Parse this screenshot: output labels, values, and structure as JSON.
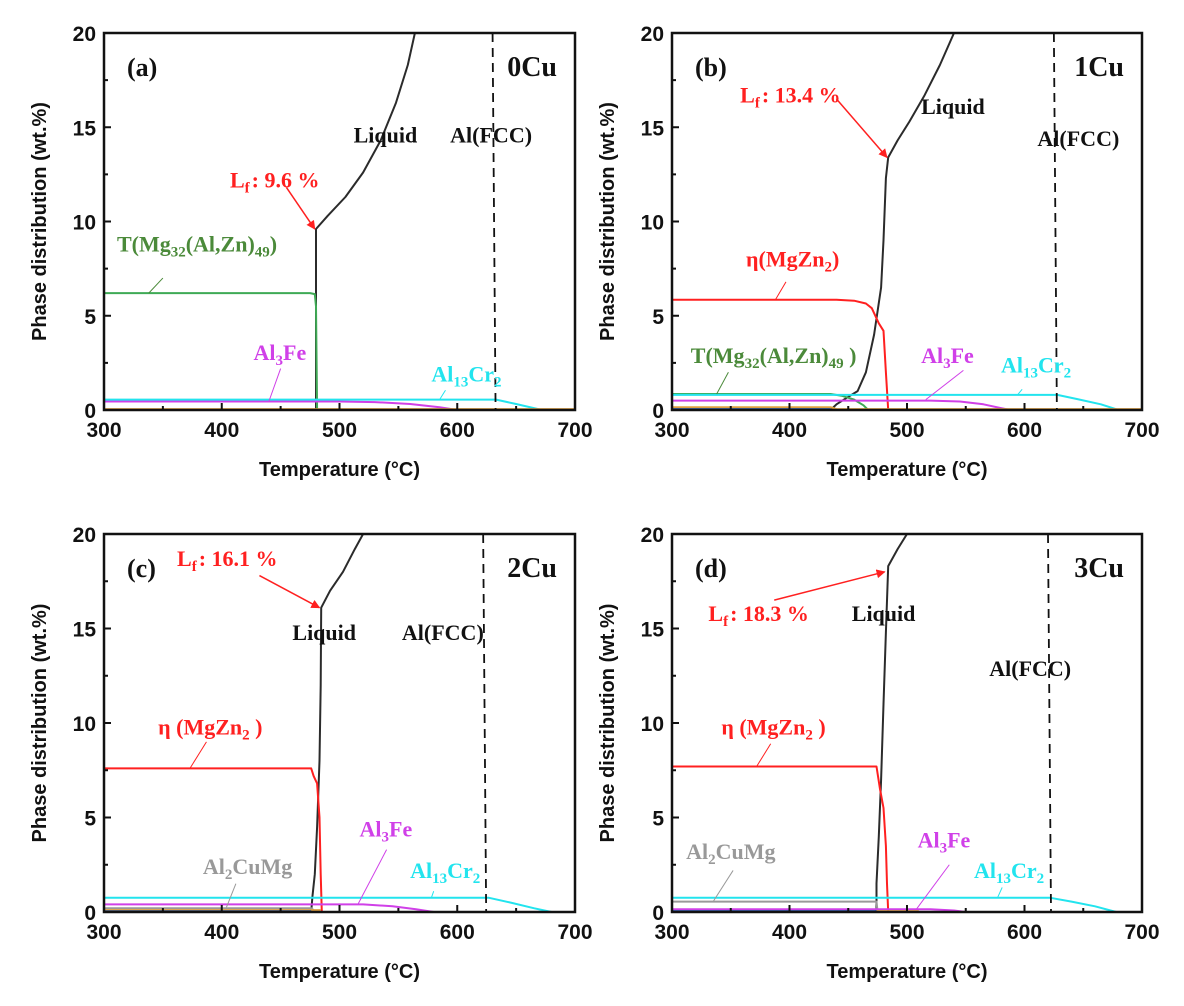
{
  "figure": {
    "colors": {
      "liquid": "#2b2b2b",
      "fcc": "#111111",
      "T_phase": "#3faa55",
      "T_label": "#4b8a3a",
      "eta": "#ff2020",
      "al3fe": "#d040e8",
      "al13cr2": "#22e4ee",
      "al2cumg": "#999999",
      "annotation_red": "#ff2020",
      "minor_orange": "#e0a040",
      "minor_blue": "#2050a0"
    }
  },
  "chart_data": [
    {
      "id": "a",
      "type": "line",
      "panel_label": "(a)",
      "composition_label": "0Cu",
      "xlabel": "Temperature (°C)",
      "ylabel": "Phase distribution (wt.%)",
      "xlim": [
        300,
        700
      ],
      "ylim": [
        0,
        20
      ],
      "xticks": [
        300,
        400,
        500,
        600,
        700
      ],
      "yticks": [
        0,
        5,
        10,
        15,
        20
      ],
      "fcc_dashed_line_T": 630,
      "series": [
        {
          "name": "Liquid",
          "color_key": "liquid",
          "points": [
            [
              480,
              0
            ],
            [
              480,
              9.6
            ],
            [
              490,
              10.3
            ],
            [
              505,
              11.3
            ],
            [
              520,
              12.6
            ],
            [
              535,
              14.3
            ],
            [
              548,
              16.3
            ],
            [
              558,
              18.3
            ],
            [
              564,
              20
            ]
          ]
        },
        {
          "name": "T(Mg32(Al,Zn)49)",
          "color_key": "T_phase",
          "points": [
            [
              300,
              6.2
            ],
            [
              475,
              6.2
            ],
            [
              479,
              6.15
            ],
            [
              480,
              5.5
            ],
            [
              481,
              0
            ]
          ]
        },
        {
          "name": "Al3Fe",
          "color_key": "al3fe",
          "points": [
            [
              300,
              0.45
            ],
            [
              500,
              0.45
            ],
            [
              530,
              0.42
            ],
            [
              560,
              0.32
            ],
            [
              585,
              0.15
            ],
            [
              600,
              0
            ]
          ]
        },
        {
          "name": "Al13Cr2",
          "color_key": "al13cr2",
          "points": [
            [
              300,
              0.55
            ],
            [
              633,
              0.55
            ],
            [
              650,
              0.32
            ],
            [
              672,
              0
            ],
            [
              700,
              0
            ]
          ]
        },
        {
          "name": "minor",
          "color_key": "minor_orange",
          "points": [
            [
              300,
              0.05
            ],
            [
              700,
              0.05
            ]
          ]
        }
      ],
      "annotations": [
        {
          "text_main": "L",
          "text_sub": "f",
          "text_tail": ": 9.6 %",
          "color_key": "annotation_red",
          "arrow_to": [
            479,
            9.6
          ],
          "arrow_from": [
            455,
            11.8
          ]
        },
        {
          "text": "Liquid",
          "color_key": "fcc"
        },
        {
          "text": "Al(FCC)",
          "color_key": "fcc"
        },
        {
          "text_parts": [
            "T(Mg",
            "32",
            "(Al,Zn)",
            "49",
            ")"
          ],
          "color_key": "T_label"
        },
        {
          "text_parts": [
            "Al",
            "3",
            "Fe"
          ],
          "color_key": "al3fe"
        },
        {
          "text_parts": [
            "Al",
            "13",
            "Cr",
            "2"
          ],
          "color_key": "al13cr2"
        }
      ],
      "Lf_value": "9.6 %"
    },
    {
      "id": "b",
      "type": "line",
      "panel_label": "(b)",
      "composition_label": "1Cu",
      "xlabel": "Temperature (°C)",
      "ylabel": "Phase distribution (wt.%)",
      "xlim": [
        300,
        700
      ],
      "ylim": [
        0,
        20
      ],
      "xticks": [
        300,
        400,
        500,
        600,
        700
      ],
      "yticks": [
        0,
        5,
        10,
        15,
        20
      ],
      "fcc_dashed_line_T": 625,
      "series": [
        {
          "name": "Liquid",
          "color_key": "liquid",
          "points": [
            [
              435,
              0
            ],
            [
              440,
              0.3
            ],
            [
              450,
              0.7
            ],
            [
              458,
              1.0
            ],
            [
              465,
              2.0
            ],
            [
              472,
              4.0
            ],
            [
              478,
              6.5
            ],
            [
              480,
              9.0
            ],
            [
              482,
              12.3
            ],
            [
              484,
              13.4
            ],
            [
              492,
              14.3
            ],
            [
              502,
              15.3
            ],
            [
              515,
              16.7
            ],
            [
              528,
              18.3
            ],
            [
              540,
              20
            ]
          ]
        },
        {
          "name": "η(MgZn2)",
          "color_key": "eta",
          "points": [
            [
              300,
              5.85
            ],
            [
              440,
              5.85
            ],
            [
              455,
              5.8
            ],
            [
              465,
              5.65
            ],
            [
              470,
              5.4
            ],
            [
              476,
              4.6
            ],
            [
              480,
              4.2
            ],
            [
              482,
              2.0
            ],
            [
              484,
              0
            ]
          ]
        },
        {
          "name": "T(Mg32(Al,Zn)49)",
          "color_key": "T_phase",
          "points": [
            [
              300,
              0.85
            ],
            [
              435,
              0.85
            ],
            [
              445,
              0.75
            ],
            [
              455,
              0.55
            ],
            [
              463,
              0.25
            ],
            [
              467,
              0
            ]
          ]
        },
        {
          "name": "Al3Fe",
          "color_key": "al3fe",
          "points": [
            [
              300,
              0.5
            ],
            [
              520,
              0.5
            ],
            [
              545,
              0.45
            ],
            [
              565,
              0.3
            ],
            [
              580,
              0.1
            ],
            [
              588,
              0
            ]
          ]
        },
        {
          "name": "Al13Cr2",
          "color_key": "al13cr2",
          "points": [
            [
              300,
              0.8
            ],
            [
              628,
              0.8
            ],
            [
              645,
              0.58
            ],
            [
              665,
              0.3
            ],
            [
              680,
              0
            ],
            [
              700,
              0
            ]
          ]
        },
        {
          "name": "minor-orange",
          "color_key": "minor_orange",
          "points": [
            [
              300,
              0.15
            ],
            [
              435,
              0.15
            ],
            [
              440,
              0.05
            ],
            [
              700,
              0.05
            ]
          ]
        },
        {
          "name": "minor-blue",
          "color_key": "minor_blue",
          "points": [
            [
              300,
              0.05
            ],
            [
              435,
              0.05
            ]
          ]
        }
      ],
      "annotations": [
        {
          "text_main": "L",
          "text_sub": "f",
          "text_tail": ": 13.4 %",
          "color_key": "annotation_red",
          "arrow_to": [
            483,
            13.4
          ],
          "arrow_from": [
            440,
            16.5
          ]
        },
        {
          "text": "Liquid",
          "color_key": "fcc"
        },
        {
          "text": "Al(FCC)",
          "color_key": "fcc"
        },
        {
          "text_parts": [
            "η(MgZn",
            "2",
            ")"
          ],
          "color_key": "eta"
        },
        {
          "text_parts": [
            "T(Mg",
            "32",
            "(Al,Zn)",
            "49",
            " )"
          ],
          "color_key": "T_label"
        },
        {
          "text_parts": [
            "Al",
            "3",
            "Fe"
          ],
          "color_key": "al3fe"
        },
        {
          "text_parts": [
            "Al",
            "13",
            "Cr",
            "2"
          ],
          "color_key": "al13cr2"
        }
      ],
      "Lf_value": "13.4 %"
    },
    {
      "id": "c",
      "type": "line",
      "panel_label": "(c)",
      "composition_label": "2Cu",
      "xlabel": "Temperature (°C)",
      "ylabel": "Phase distribution (wt.%)",
      "xlim": [
        300,
        700
      ],
      "ylim": [
        0,
        20
      ],
      "xticks": [
        300,
        400,
        500,
        600,
        700
      ],
      "yticks": [
        0,
        5,
        10,
        15,
        20
      ],
      "fcc_dashed_line_T": 622,
      "series": [
        {
          "name": "Liquid",
          "color_key": "liquid",
          "points": [
            [
              476,
              0
            ],
            [
              477,
              0.8
            ],
            [
              479,
              2.0
            ],
            [
              481,
              4.5
            ],
            [
              483,
              8.0
            ],
            [
              484,
              12.0
            ],
            [
              484.5,
              16.1
            ],
            [
              492,
              17.0
            ],
            [
              503,
              18.0
            ],
            [
              513,
              19.2
            ],
            [
              520,
              20
            ]
          ]
        },
        {
          "name": "η (MgZn2)",
          "color_key": "eta",
          "points": [
            [
              300,
              7.6
            ],
            [
              476,
              7.6
            ],
            [
              478,
              7.2
            ],
            [
              481,
              6.8
            ],
            [
              483,
              5.0
            ],
            [
              484,
              2.0
            ],
            [
              485,
              0
            ]
          ]
        },
        {
          "name": "Al2CuMg",
          "color_key": "al2cumg",
          "points": [
            [
              300,
              0.2
            ],
            [
              476,
              0.2
            ],
            [
              480,
              0
            ]
          ]
        },
        {
          "name": "Al3Fe",
          "color_key": "al3fe",
          "points": [
            [
              300,
              0.4
            ],
            [
              520,
              0.4
            ],
            [
              545,
              0.3
            ],
            [
              565,
              0.15
            ],
            [
              580,
              0
            ]
          ]
        },
        {
          "name": "Al13Cr2",
          "color_key": "al13cr2",
          "points": [
            [
              300,
              0.75
            ],
            [
              627,
              0.75
            ],
            [
              645,
              0.5
            ],
            [
              665,
              0.2
            ],
            [
              680,
              0
            ],
            [
              700,
              0
            ]
          ]
        },
        {
          "name": "minor-orange",
          "color_key": "minor_orange",
          "points": [
            [
              300,
              0.1
            ],
            [
              484,
              0.1
            ]
          ]
        },
        {
          "name": "minor-blue",
          "color_key": "minor_blue",
          "points": [
            [
              300,
              0.04
            ],
            [
              476,
              0.04
            ]
          ]
        }
      ],
      "annotations": [
        {
          "text_main": "L",
          "text_sub": "f",
          "text_tail": ": 16.1 %",
          "color_key": "annotation_red",
          "arrow_to": [
            483,
            16.1
          ],
          "arrow_from": [
            432,
            17.8
          ]
        },
        {
          "text": "Liquid",
          "color_key": "fcc"
        },
        {
          "text": "Al(FCC)",
          "color_key": "fcc"
        },
        {
          "text_parts": [
            "η (MgZn",
            "2",
            " )"
          ],
          "color_key": "eta"
        },
        {
          "text_parts": [
            "Al",
            "2",
            "CuMg"
          ],
          "color_key": "al2cumg"
        },
        {
          "text_parts": [
            "Al",
            "3",
            "Fe"
          ],
          "color_key": "al3fe"
        },
        {
          "text_parts": [
            "Al",
            "13",
            "Cr",
            "2"
          ],
          "color_key": "al13cr2"
        }
      ],
      "Lf_value": "16.1 %"
    },
    {
      "id": "d",
      "type": "line",
      "panel_label": "(d)",
      "composition_label": "3Cu",
      "xlabel": "Temperature (°C)",
      "ylabel": "Phase distribution (wt.%)",
      "xlim": [
        300,
        700
      ],
      "ylim": [
        0,
        20
      ],
      "xticks": [
        300,
        400,
        500,
        600,
        700
      ],
      "yticks": [
        0,
        5,
        10,
        15,
        20
      ],
      "fcc_dashed_line_T": 620,
      "series": [
        {
          "name": "Liquid",
          "color_key": "liquid",
          "points": [
            [
              474,
              0
            ],
            [
              474,
              1.5
            ],
            [
              476,
              4.0
            ],
            [
              478,
              7.0
            ],
            [
              480,
              11.0
            ],
            [
              482,
              14.8
            ],
            [
              484,
              18.3
            ],
            [
              492,
              19.2
            ],
            [
              500,
              20
            ]
          ]
        },
        {
          "name": "η (MgZn2)",
          "color_key": "eta",
          "points": [
            [
              300,
              7.7
            ],
            [
              474,
              7.7
            ],
            [
              477,
              6.5
            ],
            [
              480,
              5.5
            ],
            [
              482,
              3.5
            ],
            [
              483,
              1.5
            ],
            [
              484,
              0
            ]
          ]
        },
        {
          "name": "Al2CuMg",
          "color_key": "al2cumg",
          "points": [
            [
              300,
              0.55
            ],
            [
              474,
              0.55
            ],
            [
              475,
              0
            ]
          ]
        },
        {
          "name": "Al3Fe",
          "color_key": "al3fe",
          "points": [
            [
              300,
              0.15
            ],
            [
              520,
              0.15
            ],
            [
              540,
              0.08
            ],
            [
              550,
              0
            ]
          ]
        },
        {
          "name": "Al13Cr2",
          "color_key": "al13cr2",
          "points": [
            [
              300,
              0.75
            ],
            [
              622,
              0.75
            ],
            [
              640,
              0.55
            ],
            [
              660,
              0.3
            ],
            [
              678,
              0
            ],
            [
              700,
              0
            ]
          ]
        },
        {
          "name": "minor-orange",
          "color_key": "minor_orange",
          "points": [
            [
              474,
              0.05
            ],
            [
              510,
              0.05
            ]
          ]
        },
        {
          "name": "minor-blue",
          "color_key": "minor_blue",
          "points": [
            [
              300,
              0.05
            ],
            [
              474,
              0.05
            ]
          ]
        }
      ],
      "annotations": [
        {
          "text_main": "L",
          "text_sub": "f",
          "text_tail": ": 18.3 %",
          "color_key": "annotation_red",
          "arrow_to": [
            481,
            18.0
          ],
          "arrow_from": [
            387,
            16.5
          ]
        },
        {
          "text": "Liquid",
          "color_key": "fcc"
        },
        {
          "text": "Al(FCC)",
          "color_key": "fcc"
        },
        {
          "text_parts": [
            "η (MgZn",
            "2",
            " )"
          ],
          "color_key": "eta"
        },
        {
          "text_parts": [
            "Al",
            "2",
            "CuMg"
          ],
          "color_key": "al2cumg"
        },
        {
          "text_parts": [
            "Al",
            "3",
            "Fe"
          ],
          "color_key": "al3fe"
        },
        {
          "text_parts": [
            "Al",
            "13",
            "Cr",
            "2"
          ],
          "color_key": "al13cr2"
        }
      ],
      "Lf_value": "18.3 %"
    }
  ]
}
